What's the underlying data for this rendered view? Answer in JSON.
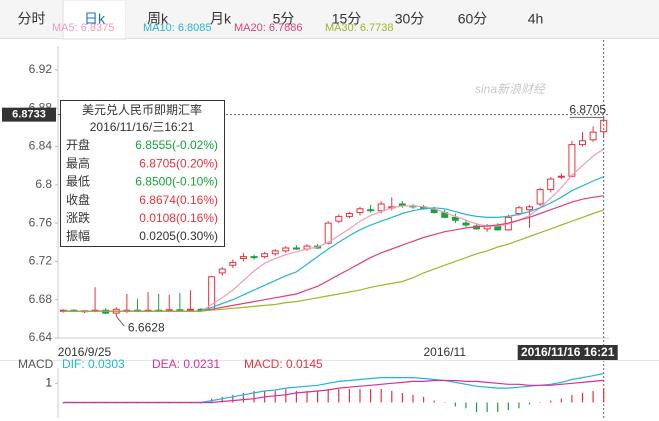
{
  "tabs": [
    "分时",
    "日k",
    "周k",
    "月k",
    "5分",
    "15分",
    "30分",
    "60分",
    "4h"
  ],
  "active_tab": "日k",
  "chart_data": [
    {
      "type": "candlestick",
      "watermark": "sina新浪财经",
      "categories": [
        null,
        null,
        "2016/9/25",
        null,
        null,
        null,
        null,
        null,
        null,
        null,
        null,
        null,
        null,
        null,
        null,
        null,
        null,
        null,
        null,
        null,
        null,
        null,
        null,
        null,
        null,
        null,
        null,
        null,
        null,
        null,
        null,
        null,
        null,
        null,
        null,
        null,
        "2016/11",
        null,
        null,
        null,
        null,
        null,
        null,
        null,
        null,
        null,
        null,
        null,
        null,
        null,
        null,
        "2016/11/16 16:21"
      ],
      "open": [
        6.668,
        6.669,
        6.6675,
        6.6685,
        6.669,
        6.666,
        6.668,
        6.669,
        6.668,
        6.669,
        6.6685,
        6.6695,
        6.669,
        6.67,
        6.67,
        6.708,
        6.716,
        6.723,
        6.725,
        6.725,
        6.728,
        6.731,
        6.734,
        6.733,
        6.736,
        6.739,
        6.762,
        6.767,
        6.771,
        6.774,
        6.773,
        6.776,
        6.78,
        6.778,
        6.777,
        6.774,
        6.771,
        6.766,
        6.76,
        6.757,
        6.754,
        6.757,
        6.753,
        6.77,
        6.774,
        6.78,
        6.795,
        6.808,
        6.809,
        6.842,
        6.847,
        6.8555
      ],
      "high": [
        6.67,
        6.67,
        6.669,
        6.693,
        6.671,
        6.672,
        6.686,
        6.681,
        6.688,
        6.686,
        6.685,
        6.687,
        6.69,
        6.671,
        6.705,
        6.714,
        6.722,
        6.729,
        6.727,
        6.73,
        6.733,
        6.736,
        6.737,
        6.738,
        6.738,
        6.762,
        6.769,
        6.772,
        6.777,
        6.779,
        6.783,
        6.787,
        6.783,
        6.78,
        6.779,
        6.777,
        6.774,
        6.77,
        6.764,
        6.76,
        6.759,
        6.76,
        6.769,
        6.778,
        6.779,
        6.797,
        6.808,
        6.812,
        6.846,
        6.855,
        6.861,
        6.8705
      ],
      "low": [
        6.6665,
        6.667,
        6.666,
        6.667,
        6.665,
        6.6628,
        6.666,
        6.667,
        6.667,
        6.6675,
        6.667,
        6.668,
        6.6685,
        6.668,
        6.669,
        6.705,
        6.713,
        6.72,
        6.722,
        6.723,
        6.726,
        6.729,
        6.732,
        6.731,
        6.733,
        6.738,
        6.76,
        6.765,
        6.768,
        6.771,
        6.77,
        6.773,
        6.776,
        6.775,
        6.774,
        6.77,
        6.765,
        6.76,
        6.756,
        6.753,
        6.751,
        6.752,
        6.752,
        6.768,
        6.755,
        6.778,
        6.792,
        6.806,
        6.808,
        6.84,
        6.845,
        6.85
      ],
      "close": [
        6.669,
        6.668,
        6.6685,
        6.669,
        6.666,
        6.67,
        6.669,
        6.668,
        6.669,
        6.6685,
        6.6695,
        6.669,
        6.67,
        6.6695,
        6.704,
        6.712,
        6.719,
        6.725,
        6.724,
        6.728,
        6.731,
        6.734,
        6.733,
        6.736,
        6.734,
        6.76,
        6.767,
        6.77,
        6.775,
        6.773,
        6.78,
        6.777,
        6.778,
        6.777,
        6.775,
        6.771,
        6.766,
        6.763,
        6.758,
        6.754,
        6.757,
        6.753,
        6.766,
        6.776,
        6.777,
        6.795,
        6.806,
        6.809,
        6.842,
        6.846,
        6.855,
        6.8674
      ],
      "up_color": "#e8333b",
      "down_color": "#17a33a",
      "up_hollow": true,
      "lines": [
        {
          "name": "MA5: 6.8375",
          "color": "#f29cb6",
          "values": [
            6.668,
            6.668,
            6.668,
            6.668,
            6.668,
            6.668,
            6.668,
            6.668,
            6.668,
            6.668,
            6.668,
            6.668,
            6.668,
            6.668,
            6.675,
            6.682,
            6.69,
            6.7,
            6.71,
            6.718,
            6.723,
            6.727,
            6.73,
            6.733,
            6.735,
            6.74,
            6.747,
            6.754,
            6.762,
            6.768,
            6.772,
            6.776,
            6.778,
            6.778,
            6.777,
            6.775,
            6.771,
            6.767,
            6.763,
            6.759,
            6.757,
            6.757,
            6.759,
            6.763,
            6.768,
            6.776,
            6.786,
            6.797,
            6.81,
            6.82,
            6.83,
            6.8375
          ]
        },
        {
          "name": "MA10: 6.8085",
          "color": "#25b5d8",
          "values": [
            6.668,
            6.668,
            6.668,
            6.668,
            6.668,
            6.668,
            6.668,
            6.668,
            6.668,
            6.668,
            6.668,
            6.668,
            6.668,
            6.668,
            6.672,
            6.676,
            6.68,
            6.685,
            6.69,
            6.695,
            6.7,
            6.705,
            6.709,
            6.717,
            6.725,
            6.733,
            6.74,
            6.747,
            6.753,
            6.758,
            6.762,
            6.766,
            6.77,
            6.773,
            6.775,
            6.776,
            6.775,
            6.772,
            6.769,
            6.767,
            6.766,
            6.766,
            6.767,
            6.769,
            6.772,
            6.776,
            6.781,
            6.787,
            6.794,
            6.799,
            6.804,
            6.8085
          ]
        },
        {
          "name": "MA20: 6.7886",
          "color": "#e0407a",
          "values": [
            6.668,
            6.668,
            6.668,
            6.668,
            6.668,
            6.668,
            6.668,
            6.668,
            6.668,
            6.668,
            6.668,
            6.668,
            6.668,
            6.668,
            6.67,
            6.672,
            6.674,
            6.676,
            6.678,
            6.68,
            6.682,
            6.684,
            6.686,
            6.69,
            6.694,
            6.7,
            6.706,
            6.712,
            6.718,
            6.724,
            6.729,
            6.733,
            6.737,
            6.741,
            6.745,
            6.748,
            6.751,
            6.753,
            6.755,
            6.756,
            6.757,
            6.758,
            6.76,
            6.763,
            6.766,
            6.77,
            6.774,
            6.778,
            6.782,
            6.785,
            6.787,
            6.7886
          ]
        },
        {
          "name": "MA30: 6.7738",
          "color": "#9db82a",
          "values": [
            6.668,
            6.668,
            6.668,
            6.668,
            6.668,
            6.668,
            6.668,
            6.668,
            6.668,
            6.668,
            6.668,
            6.668,
            6.668,
            6.668,
            6.669,
            6.67,
            6.671,
            6.672,
            6.673,
            6.674,
            6.675,
            6.677,
            6.678,
            6.68,
            6.682,
            6.684,
            6.686,
            6.688,
            6.69,
            6.693,
            6.695,
            6.697,
            6.699,
            6.703,
            6.708,
            6.712,
            6.716,
            6.72,
            6.724,
            6.728,
            6.731,
            6.735,
            6.738,
            6.742,
            6.746,
            6.75,
            6.754,
            6.758,
            6.762,
            6.766,
            6.77,
            6.7738
          ]
        }
      ],
      "ylim": [
        6.64,
        6.945
      ],
      "yticks": [
        6.64,
        6.68,
        6.72,
        6.76,
        6.8,
        6.84,
        6.88,
        6.92
      ],
      "crosshair": 6.8733,
      "max_label": 6.8705,
      "min_label": 6.6628,
      "tooltip": {
        "title": "美元兑人民币即期汇率",
        "datetime": "2016/11/16/三16:21",
        "rows": [
          {
            "label": "开盘",
            "value": "6.8555(-0.02%)",
            "color": "#17a33a"
          },
          {
            "label": "最高",
            "value": "6.8705(0.20%)",
            "color": "#e8333b"
          },
          {
            "label": "最低",
            "value": "6.8500(-0.10%)",
            "color": "#17a33a"
          },
          {
            "label": "收盘",
            "value": "6.8674(0.16%)",
            "color": "#e8333b"
          },
          {
            "label": "涨跌",
            "value": "0.0108(0.16%)",
            "color": "#e8333b"
          },
          {
            "label": "振幅",
            "value": "0.0205(0.30%)",
            "color": "#333333"
          }
        ]
      }
    },
    {
      "type": "macd",
      "title": "MACD",
      "ylim": [
        -0.012,
        0.036
      ],
      "yticks": [
        {
          "value": 0.02,
          "label": "1"
        }
      ],
      "up_color": "#e8333b",
      "down_color": "#17a33a",
      "series": [
        {
          "name": "DIF: 0.0303",
          "color": "#1eb4dd",
          "values": [
            0,
            0,
            0,
            0,
            0,
            0,
            0,
            0,
            0,
            0,
            0,
            0,
            0,
            0,
            0.002,
            0.004,
            0.006,
            0.008,
            0.01,
            0.012,
            0.013,
            0.015,
            0.016,
            0.017,
            0.018,
            0.02,
            0.022,
            0.023,
            0.024,
            0.025,
            0.026,
            0.026,
            0.026,
            0.026,
            0.025,
            0.024,
            0.023,
            0.021,
            0.019,
            0.017,
            0.016,
            0.015,
            0.015,
            0.016,
            0.017,
            0.018,
            0.019,
            0.021,
            0.024,
            0.026,
            0.028,
            0.0303
          ]
        },
        {
          "name": "DEA: 0.0231",
          "color": "#d6309b",
          "values": [
            0,
            0,
            0,
            0,
            0,
            0,
            0,
            0,
            0,
            0,
            0,
            0,
            0,
            0,
            0,
            0.001,
            0.002,
            0.003,
            0.004,
            0.006,
            0.007,
            0.008,
            0.01,
            0.011,
            0.012,
            0.013,
            0.015,
            0.016,
            0.017,
            0.018,
            0.019,
            0.02,
            0.021,
            0.022,
            0.022,
            0.023,
            0.023,
            0.023,
            0.022,
            0.022,
            0.021,
            0.02,
            0.019,
            0.019,
            0.018,
            0.018,
            0.018,
            0.019,
            0.02,
            0.021,
            0.022,
            0.0231
          ]
        },
        {
          "name": "MACD: 0.0145",
          "color": "#e8333b",
          "bars": true,
          "values": [
            -0.001,
            -0.001,
            -0.001,
            -0.001,
            -0.001,
            -0.001,
            -0.001,
            -0.001,
            -0.001,
            -0.001,
            -0.001,
            -0.001,
            -0.001,
            -0.001,
            0.004,
            0.006,
            0.008,
            0.01,
            0.012,
            0.012,
            0.012,
            0.014,
            0.012,
            0.012,
            0.012,
            0.014,
            0.014,
            0.014,
            0.014,
            0.014,
            0.014,
            0.012,
            0.01,
            0.008,
            0.006,
            0.002,
            0,
            -0.004,
            -0.006,
            -0.01,
            -0.01,
            -0.01,
            -0.008,
            -0.006,
            -0.002,
            0,
            0.002,
            0.004,
            0.008,
            0.01,
            0.012,
            0.0145
          ]
        }
      ]
    }
  ]
}
